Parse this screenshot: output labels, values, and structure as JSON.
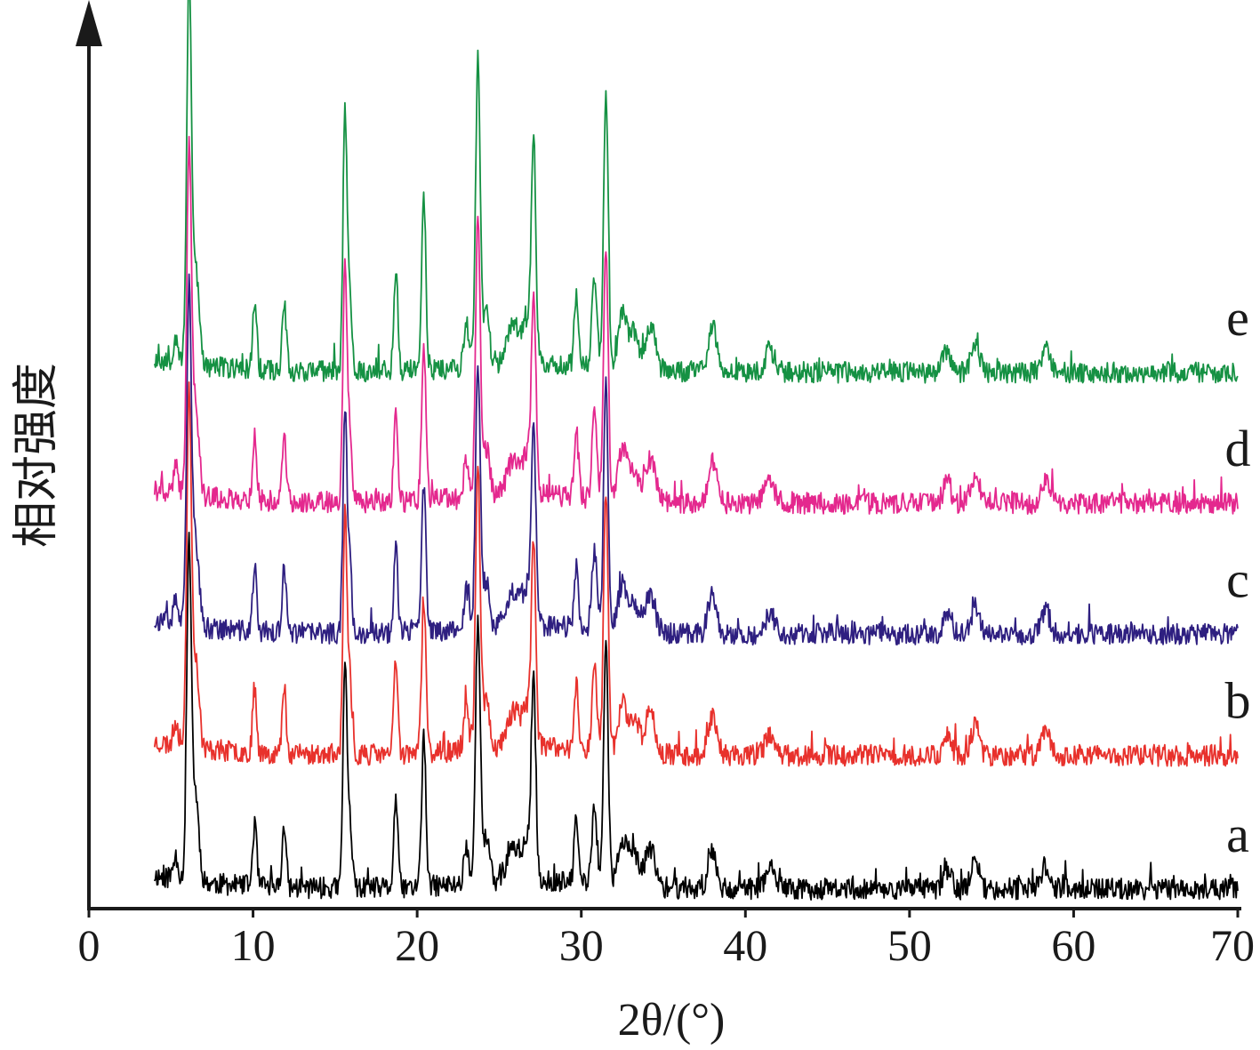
{
  "chart_data": {
    "type": "line",
    "title": "",
    "xlabel": "2θ/(°)",
    "ylabel": "相对强度",
    "xlim": [
      0,
      70
    ],
    "x_range": [
      4,
      70
    ],
    "x_ticks": [
      "0",
      "10",
      "20",
      "30",
      "40",
      "50",
      "60",
      "70"
    ],
    "grid": false,
    "legend": "inline labels at right end of each curve",
    "peaks": [
      {
        "x": 5.3,
        "h": 0.06,
        "w": 0.15
      },
      {
        "x": 6.1,
        "h": 0.85,
        "w": 0.14
      },
      {
        "x": 6.5,
        "h": 0.22,
        "w": 0.2
      },
      {
        "x": 10.1,
        "h": 0.16,
        "w": 0.12
      },
      {
        "x": 11.9,
        "h": 0.16,
        "w": 0.12
      },
      {
        "x": 15.6,
        "h": 0.58,
        "w": 0.12
      },
      {
        "x": 15.9,
        "h": 0.18,
        "w": 0.12
      },
      {
        "x": 18.7,
        "h": 0.23,
        "w": 0.12
      },
      {
        "x": 20.4,
        "h": 0.38,
        "w": 0.13
      },
      {
        "x": 23.0,
        "h": 0.1,
        "w": 0.15
      },
      {
        "x": 23.7,
        "h": 0.68,
        "w": 0.14
      },
      {
        "x": 24.2,
        "h": 0.12,
        "w": 0.2
      },
      {
        "x": 25.9,
        "h": 0.09,
        "w": 0.4
      },
      {
        "x": 26.8,
        "h": 0.1,
        "w": 0.3
      },
      {
        "x": 27.1,
        "h": 0.45,
        "w": 0.13
      },
      {
        "x": 29.7,
        "h": 0.16,
        "w": 0.13
      },
      {
        "x": 30.8,
        "h": 0.2,
        "w": 0.15
      },
      {
        "x": 31.5,
        "h": 0.62,
        "w": 0.14
      },
      {
        "x": 32.5,
        "h": 0.12,
        "w": 0.25
      },
      {
        "x": 33.2,
        "h": 0.08,
        "w": 0.3
      },
      {
        "x": 34.2,
        "h": 0.1,
        "w": 0.3
      },
      {
        "x": 38.0,
        "h": 0.1,
        "w": 0.25
      },
      {
        "x": 41.5,
        "h": 0.05,
        "w": 0.3
      },
      {
        "x": 52.3,
        "h": 0.05,
        "w": 0.25
      },
      {
        "x": 54.0,
        "h": 0.07,
        "w": 0.25
      },
      {
        "x": 58.3,
        "h": 0.06,
        "w": 0.25
      }
    ],
    "series": [
      {
        "name": "a",
        "color": "#000000",
        "offset": 0.0,
        "scale": 1.0,
        "seed": 11
      },
      {
        "name": "b",
        "color": "#e8312c",
        "offset": 0.97,
        "scale": 1.05,
        "seed": 23
      },
      {
        "name": "c",
        "color": "#2e1f80",
        "offset": 1.85,
        "scale": 1.0,
        "seed": 37
      },
      {
        "name": "d",
        "color": "#e4288e",
        "offset": 2.8,
        "scale": 1.05,
        "seed": 41
      },
      {
        "name": "e",
        "color": "#159143",
        "offset": 3.75,
        "scale": 1.15,
        "seed": 53
      }
    ]
  }
}
